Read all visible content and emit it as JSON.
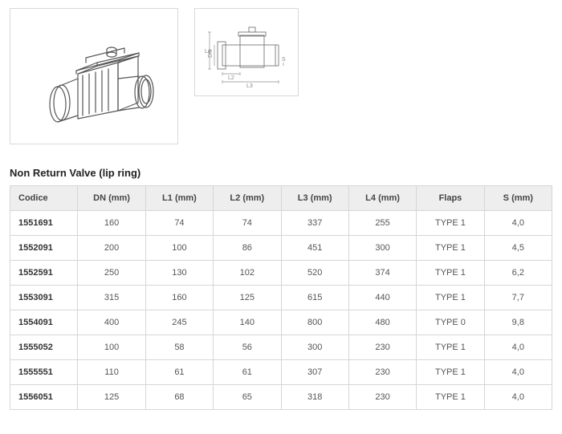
{
  "title": "Non Return Valve (lip ring)",
  "diagram_labels": {
    "l4": "L4",
    "dn": "DN",
    "l2": "L2",
    "l3": "L3",
    "s": "S"
  },
  "table": {
    "columns": [
      "Codice",
      "DN (mm)",
      "L1 (mm)",
      "L2 (mm)",
      "L3 (mm)",
      "L4 (mm)",
      "Flaps",
      "S (mm)"
    ],
    "rows": [
      [
        "1551691",
        "160",
        "74",
        "74",
        "337",
        "255",
        "TYPE 1",
        "4,0"
      ],
      [
        "1552091",
        "200",
        "100",
        "86",
        "451",
        "300",
        "TYPE 1",
        "4,5"
      ],
      [
        "1552591",
        "250",
        "130",
        "102",
        "520",
        "374",
        "TYPE 1",
        "6,2"
      ],
      [
        "1553091",
        "315",
        "160",
        "125",
        "615",
        "440",
        "TYPE 1",
        "7,7"
      ],
      [
        "1554091",
        "400",
        "245",
        "140",
        "800",
        "480",
        "TYPE 0",
        "9,8"
      ],
      [
        "1555052",
        "100",
        "58",
        "56",
        "300",
        "230",
        "TYPE 1",
        "4,0"
      ],
      [
        "1555551",
        "110",
        "61",
        "61",
        "307",
        "230",
        "TYPE 1",
        "4,0"
      ],
      [
        "1556051",
        "125",
        "68",
        "65",
        "318",
        "230",
        "TYPE 1",
        "4,0"
      ]
    ]
  }
}
